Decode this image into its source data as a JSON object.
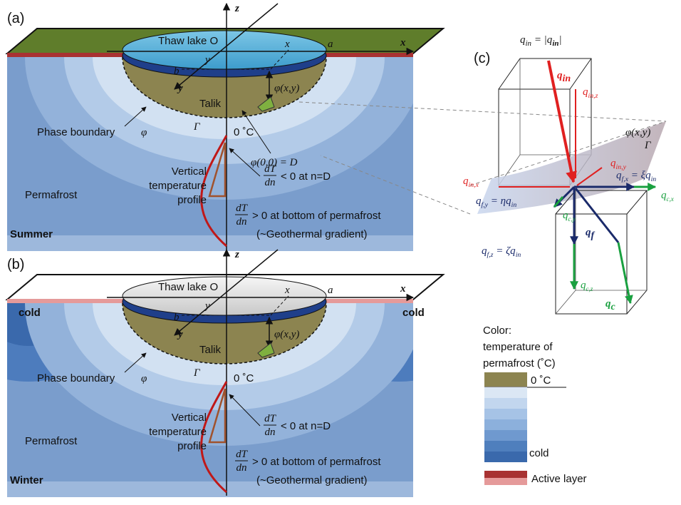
{
  "panel_a": {
    "label": "(a)",
    "season": "Summer",
    "z": "z",
    "x_axis": "x",
    "lake": "Thaw lake O",
    "x": "x",
    "a": "a",
    "y": "y",
    "b": "b",
    "y_axis": "y",
    "phi_xy": "φ(x,y)",
    "talik": "Talik",
    "phase_boundary": "Phase boundary",
    "phi": "φ",
    "gamma": "Γ",
    "zero": "0 ˚C",
    "phi00": "φ(0,0) = D",
    "profile": [
      "Vertical",
      "temperature",
      "profile"
    ],
    "grad_top": {
      "num": "dT",
      "den": "dn",
      "rest": "< 0 at n=D"
    },
    "permafrost": "Permafrost",
    "grad_bottom": {
      "num": "dT",
      "den": "dn",
      "rest": "> 0 at bottom of permafrost"
    },
    "geothermal": "(~Geothermal gradient)"
  },
  "panel_b": {
    "label": "(b)",
    "season": "Winter",
    "z": "z",
    "x_axis": "x",
    "lake": "Thaw lake O",
    "x": "x",
    "a": "a",
    "y": "y",
    "b": "b",
    "y_axis": "y",
    "phi_xy": "φ(x,y)",
    "talik": "Talik",
    "phase_boundary": "Phase boundary",
    "phi": "φ",
    "gamma": "Γ",
    "zero": "0 ˚C",
    "profile": [
      "Vertical",
      "temperature",
      "profile"
    ],
    "grad_top": {
      "num": "dT",
      "den": "dn",
      "rest": "< 0 at n=D"
    },
    "permafrost": "Permafrost",
    "grad_bottom": {
      "num": "dT",
      "den": "dn",
      "rest": "> 0 at bottom of permafrost"
    },
    "geothermal": "(~Geothermal gradient)",
    "cold": [
      "cold",
      "cold"
    ]
  },
  "panel_c": {
    "label": "(c)",
    "definition": {
      "lhs": "q",
      "lhs_sub": "in",
      "rhs": " = |q",
      "rhs_sub": "in",
      "end": "|"
    },
    "q_in": {
      "main": "q",
      "sub": "in"
    },
    "q_in_z": {
      "main": "q",
      "sub": "in,z"
    },
    "q_in_x": {
      "main": "q",
      "sub": "in,x"
    },
    "q_in_y": {
      "main": "q",
      "sub": "in,y"
    },
    "phi_xy": "φ(x,y)",
    "gamma": "Γ",
    "q_f_x": {
      "main": "q",
      "sub": "f,x",
      "rhs": " = ξq",
      "rhs_sub": "in"
    },
    "q_f_y": {
      "main": "q",
      "sub": "f,y",
      "rhs": " = ηq",
      "rhs_sub": "in"
    },
    "q_f_z": {
      "main": "q",
      "sub": "f,z",
      "rhs": " = ζq",
      "rhs_sub": "in"
    },
    "q_c_x": {
      "main": "q",
      "sub": "c,x"
    },
    "q_c_y": {
      "main": "q",
      "sub": "c,y"
    },
    "q_c_z": {
      "main": "q",
      "sub": "c,z"
    },
    "q_f": {
      "main": "q",
      "sub": "f"
    },
    "q_c": {
      "main": "q",
      "sub": "c"
    }
  },
  "legend": {
    "title": [
      "Color:",
      "temperature of",
      "permafrost (˚C)"
    ],
    "zero": "0 ˚C",
    "cold": "cold",
    "active": "Active layer"
  }
}
